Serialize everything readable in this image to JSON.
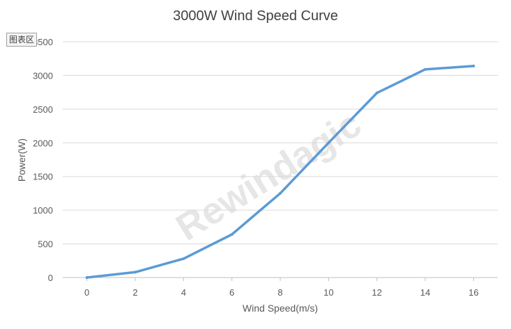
{
  "chart_area_tag": "图表区",
  "watermark": "Rewindagic",
  "colors": {
    "series_line": "#5b9bd5",
    "gridline": "#d9d9d9",
    "axis_line": "#bfbfbf",
    "tick_text": "#595959",
    "watermark": "#e6e6e6"
  },
  "chart_data": {
    "type": "line",
    "title": "3000W Wind Speed Curve",
    "xlabel": "Wind Speed(m/s)",
    "ylabel": "Power(W)",
    "x": [
      0,
      2,
      4,
      6,
      8,
      10,
      12,
      14,
      16
    ],
    "series": [
      {
        "values": [
          0,
          80,
          280,
          640,
          1250,
          2000,
          2740,
          3090,
          3140
        ]
      }
    ],
    "xlim": [
      -1,
      17
    ],
    "ylim": [
      0,
      3500
    ],
    "x_ticks": [
      "0",
      "2",
      "4",
      "6",
      "8",
      "10",
      "12",
      "14",
      "16"
    ],
    "y_ticks": [
      "0",
      "500",
      "1000",
      "1500",
      "2000",
      "2500",
      "3000",
      "3500"
    ],
    "grid": true,
    "legend": "none"
  }
}
